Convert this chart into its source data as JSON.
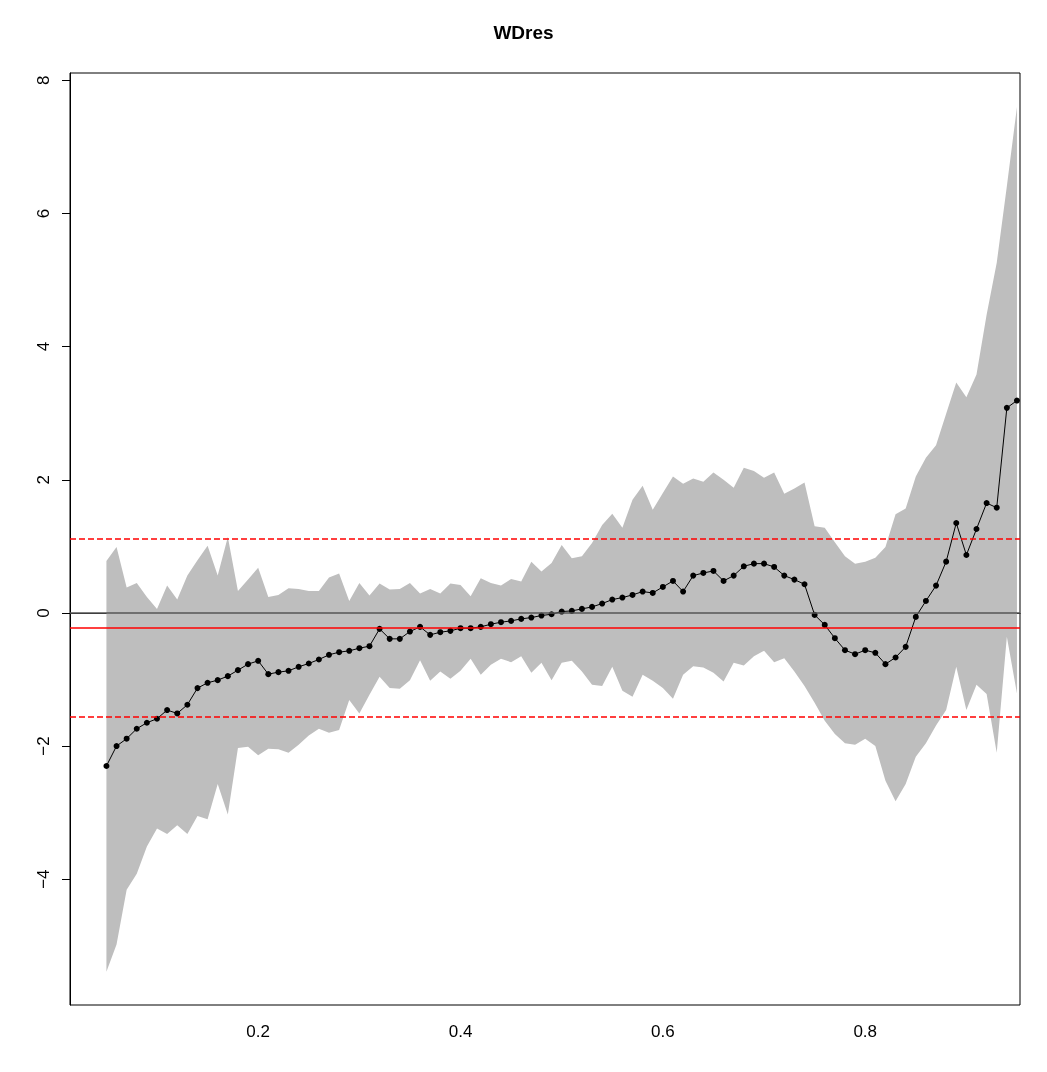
{
  "chart_data": {
    "type": "line",
    "title": "WDres",
    "x": [
      0.05,
      0.06,
      0.07,
      0.08,
      0.09,
      0.1,
      0.11,
      0.12,
      0.13,
      0.14,
      0.15,
      0.16,
      0.17,
      0.18,
      0.19,
      0.2,
      0.21,
      0.22,
      0.23,
      0.24,
      0.25,
      0.26,
      0.27,
      0.28,
      0.29,
      0.3,
      0.31,
      0.32,
      0.33,
      0.34,
      0.35,
      0.36,
      0.37,
      0.38,
      0.39,
      0.4,
      0.41,
      0.42,
      0.43,
      0.44,
      0.45,
      0.46,
      0.47,
      0.48,
      0.49,
      0.5,
      0.51,
      0.52,
      0.53,
      0.54,
      0.55,
      0.56,
      0.57,
      0.58,
      0.59,
      0.6,
      0.61,
      0.62,
      0.63,
      0.64,
      0.65,
      0.66,
      0.67,
      0.68,
      0.69,
      0.7,
      0.71,
      0.72,
      0.73,
      0.74,
      0.75,
      0.76,
      0.77,
      0.78,
      0.79,
      0.8,
      0.81,
      0.82,
      0.83,
      0.84,
      0.85,
      0.86,
      0.87,
      0.88,
      0.89,
      0.9,
      0.91,
      0.92,
      0.93,
      0.94,
      0.95
    ],
    "series": [
      {
        "color": "#000000",
        "values": [
          -2.3,
          -2.0,
          -1.89,
          -1.74,
          -1.65,
          -1.59,
          -1.46,
          -1.51,
          -1.38,
          -1.13,
          -1.05,
          -1.01,
          -0.95,
          -0.86,
          -0.77,
          -0.72,
          -0.92,
          -0.89,
          -0.87,
          -0.81,
          -0.76,
          -0.7,
          -0.63,
          -0.59,
          -0.57,
          -0.53,
          -0.5,
          -0.24,
          -0.39,
          -0.39,
          -0.28,
          -0.21,
          -0.33,
          -0.29,
          -0.27,
          -0.23,
          -0.23,
          -0.21,
          -0.17,
          -0.14,
          -0.12,
          -0.09,
          -0.07,
          -0.04,
          -0.02,
          0.02,
          0.03,
          0.06,
          0.09,
          0.14,
          0.2,
          0.23,
          0.27,
          0.32,
          0.3,
          0.39,
          0.48,
          0.32,
          0.56,
          0.6,
          0.63,
          0.48,
          0.56,
          0.7,
          0.74,
          0.74,
          0.69,
          0.56,
          0.5,
          0.43,
          -0.03,
          -0.18,
          -0.38,
          -0.56,
          -0.62,
          -0.56,
          -0.6,
          -0.77,
          -0.67,
          -0.51,
          -0.06,
          0.18,
          0.41,
          0.77,
          1.35,
          0.87,
          1.26,
          1.65,
          1.58,
          3.08,
          3.19
        ],
        "lower": [
          -5.39,
          -4.98,
          -4.16,
          -3.92,
          -3.51,
          -3.24,
          -3.32,
          -3.19,
          -3.32,
          -3.05,
          -3.1,
          -2.57,
          -3.03,
          -2.03,
          -2.01,
          -2.14,
          -2.04,
          -2.05,
          -2.1,
          -1.98,
          -1.84,
          -1.74,
          -1.8,
          -1.76,
          -1.31,
          -1.51,
          -1.23,
          -0.96,
          -1.13,
          -1.14,
          -1.01,
          -0.71,
          -1.02,
          -0.88,
          -0.99,
          -0.87,
          -0.69,
          -0.93,
          -0.78,
          -0.69,
          -0.74,
          -0.65,
          -0.9,
          -0.75,
          -1.01,
          -0.75,
          -0.72,
          -0.88,
          -1.08,
          -1.1,
          -0.81,
          -1.17,
          -1.26,
          -0.93,
          -1.02,
          -1.13,
          -1.29,
          -0.93,
          -0.8,
          -0.82,
          -0.9,
          -1.03,
          -0.75,
          -0.79,
          -0.65,
          -0.57,
          -0.74,
          -0.68,
          -0.88,
          -1.1,
          -1.35,
          -1.62,
          -1.82,
          -1.96,
          -1.98,
          -1.89,
          -2.0,
          -2.52,
          -2.83,
          -2.57,
          -2.16,
          -1.96,
          -1.69,
          -1.46,
          -0.81,
          -1.46,
          -1.08,
          -1.22,
          -2.1,
          -0.36,
          -1.21
        ],
        "upper": [
          0.78,
          0.99,
          0.38,
          0.45,
          0.24,
          0.06,
          0.41,
          0.2,
          0.56,
          0.79,
          1.01,
          0.56,
          1.14,
          0.33,
          0.5,
          0.68,
          0.24,
          0.27,
          0.37,
          0.36,
          0.33,
          0.33,
          0.53,
          0.59,
          0.18,
          0.45,
          0.26,
          0.44,
          0.35,
          0.36,
          0.45,
          0.29,
          0.36,
          0.29,
          0.44,
          0.42,
          0.25,
          0.52,
          0.45,
          0.41,
          0.51,
          0.47,
          0.77,
          0.62,
          0.75,
          1.02,
          0.82,
          0.85,
          1.05,
          1.32,
          1.49,
          1.28,
          1.7,
          1.91,
          1.55,
          1.8,
          2.05,
          1.94,
          2.02,
          1.97,
          2.11,
          2.0,
          1.88,
          2.18,
          2.13,
          2.03,
          2.11,
          1.79,
          1.87,
          1.96,
          1.3,
          1.28,
          1.06,
          0.85,
          0.74,
          0.77,
          0.83,
          0.99,
          1.48,
          1.57,
          2.05,
          2.33,
          2.52,
          2.99,
          3.46,
          3.24,
          3.58,
          4.48,
          5.26,
          6.41,
          7.6
        ]
      }
    ],
    "marker": "circle",
    "line_style": "solid",
    "xlim": [
      0.014,
      0.953
    ],
    "xticks": [
      0.2,
      0.4,
      0.6,
      0.8
    ],
    "ylim": [
      -5.89,
      8.11
    ],
    "yticks": [
      -4,
      -2,
      0,
      2,
      4,
      6,
      8
    ],
    "grid": false,
    "ref_lines": [
      {
        "axis": "y",
        "value": 0,
        "color": "#555555",
        "line_style": "solid"
      },
      {
        "axis": "y",
        "value": -0.22,
        "color": "#ff0000",
        "line_style": "solid"
      },
      {
        "axis": "y",
        "value": 1.11,
        "color": "#ff0000",
        "line_style": "dashed"
      },
      {
        "axis": "y",
        "value": -1.56,
        "color": "#ff0000",
        "line_style": "dashed"
      }
    ]
  }
}
